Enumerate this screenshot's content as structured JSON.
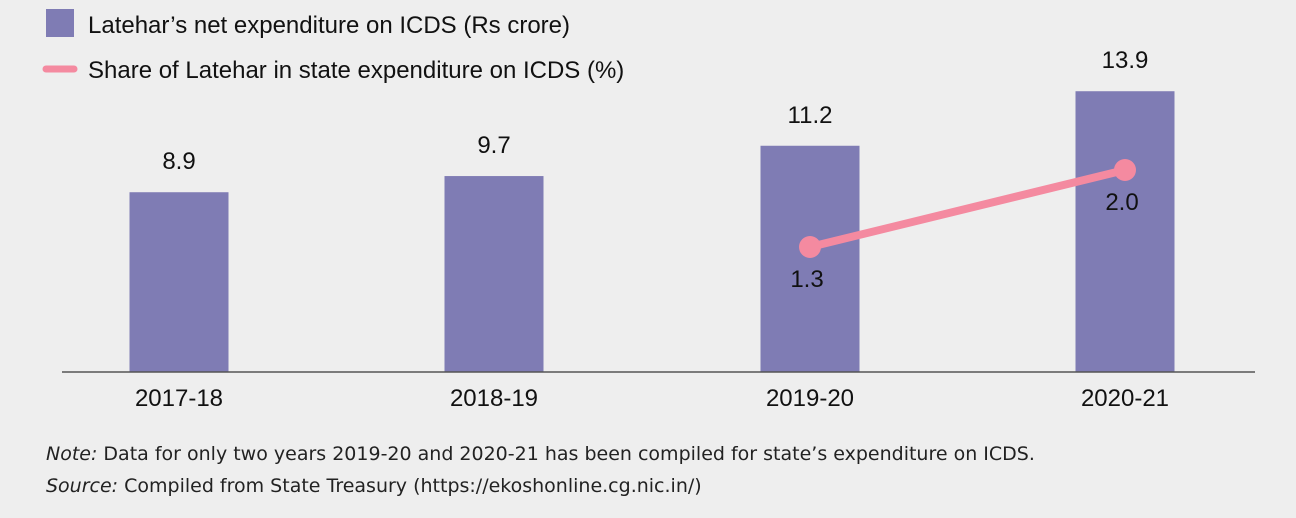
{
  "chart_data": {
    "type": "bar",
    "categories": [
      "2017-18",
      "2018-19",
      "2019-20",
      "2020-21"
    ],
    "series": [
      {
        "name": "Latehar’s net expenditure on ICDS (Rs crore)",
        "kind": "bar",
        "values": [
          8.9,
          9.7,
          11.2,
          13.9
        ],
        "labels": [
          "8.9",
          "9.7",
          "11.2",
          "13.9"
        ],
        "color": "#7f7cb4"
      },
      {
        "name": "Share of Latehar in state expenditure on ICDS (%)",
        "kind": "line",
        "values": [
          null,
          null,
          1.3,
          2.0
        ],
        "labels": [
          "",
          "",
          "1.3",
          "2.0"
        ],
        "color": "#f48aa0"
      }
    ],
    "grid": false,
    "legend_position": "top-left"
  },
  "notes": {
    "note_label": "Note:",
    "note_text": " Data for only two years 2019-20 and 2020-21 has been compiled for state’s expenditure on ICDS.",
    "source_label": "Source:",
    "source_text": " Compiled from State Treasury (https://ekoshonline.cg.nic.in/)"
  }
}
